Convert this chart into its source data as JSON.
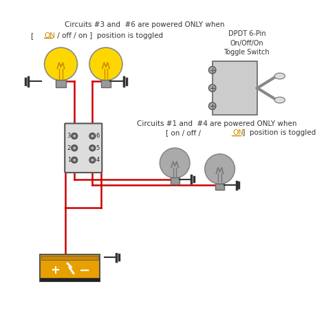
{
  "bg_color": "#ffffff",
  "text_color": "#333333",
  "wire_red": "#cc0000",
  "wire_black": "#333333",
  "bulb_on_color": "#FFD700",
  "bulb_off_color": "#aaaaaa",
  "battery_color": "#E8A000",
  "title1": "Circuits #3 and  #6 are powered ONLY when",
  "title3": "Circuits #1 and  #4 are powered ONLY when",
  "dpdt_label": "DPDT 6-Pin\nOn/Off/On\nToggle Switch"
}
